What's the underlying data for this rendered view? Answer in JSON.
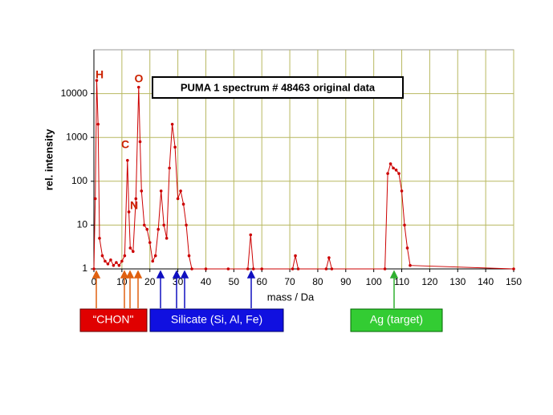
{
  "chart_data": {
    "type": "line",
    "title": "PUMA 1 spectrum # 48463 original data",
    "x_label": "mass / Da",
    "y_label": "rel. intensity",
    "log_scale_y": true,
    "grid": true,
    "xlim": [
      0,
      150
    ],
    "xticks": [
      0,
      10,
      20,
      30,
      40,
      50,
      60,
      70,
      80,
      90,
      100,
      110,
      120,
      130,
      140,
      150
    ],
    "ylim": [
      1,
      100000
    ],
    "yticks": [
      1,
      10,
      100,
      1000,
      10000
    ],
    "series": [
      {
        "color": "#cc0000",
        "x": [
          0,
          0.5,
          1,
          1.5,
          2,
          3,
          4,
          5,
          6,
          7,
          8,
          9,
          10,
          11,
          12,
          12.5,
          13,
          14,
          15,
          16,
          16.5,
          17,
          18,
          19,
          20,
          21,
          22,
          23,
          24,
          25,
          26,
          27,
          28,
          29,
          30,
          31,
          32,
          33,
          34,
          35,
          40,
          48,
          55,
          56,
          57,
          60,
          71,
          72,
          73,
          83,
          84,
          85,
          104,
          105,
          106,
          107,
          108,
          109,
          110,
          111,
          112,
          113,
          150
        ],
        "values": [
          1,
          40,
          20000,
          2000,
          5,
          2,
          1.5,
          1.3,
          1.6,
          1.2,
          1.4,
          1.2,
          1.5,
          2,
          300,
          20,
          3,
          2.5,
          40,
          14000,
          800,
          60,
          10,
          8,
          4,
          1.5,
          2,
          8,
          60,
          10,
          5,
          200,
          2000,
          600,
          40,
          60,
          30,
          10,
          2,
          1,
          1,
          1,
          1,
          6,
          1,
          1,
          1,
          2,
          1,
          1,
          1.8,
          1,
          1,
          150,
          250,
          200,
          180,
          150,
          60,
          10,
          3,
          1.2,
          1
        ]
      }
    ],
    "annotations": [
      "H",
      "C",
      "O",
      "N"
    ],
    "groups": [
      "“CHON\"",
      "Silicate (Si, Al, Fe)",
      "Ag (target)"
    ]
  }
}
